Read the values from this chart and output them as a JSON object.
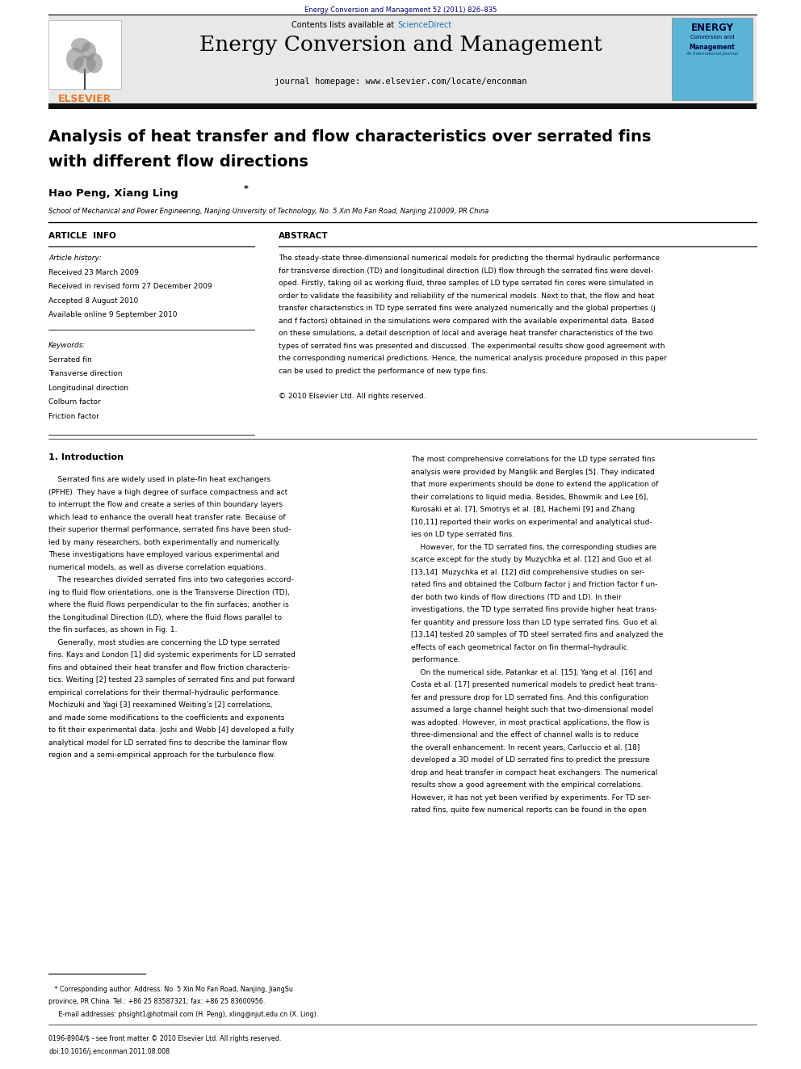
{
  "page_width": 9.92,
  "page_height": 13.23,
  "bg_color": "#ffffff",
  "top_citation": "Energy Conversion and Management 52 (2011) 826–835",
  "journal_name": "Energy Conversion and Management",
  "journal_url": "journal homepage: www.elsevier.com/locate/enconman",
  "paper_title_line1": "Analysis of heat transfer and flow characteristics over serrated fins",
  "paper_title_line2": "with different flow directions",
  "authors": "Hao Peng, Xiang Ling",
  "affiliation": "School of Mechanical and Power Engineering, Nanjing University of Technology, No. 5 Xin Mo Fan Road, Nanjing 210009, PR China",
  "article_info_label": "ARTICLE  INFO",
  "abstract_label": "ABSTRACT",
  "article_history_label": "Article history:",
  "received1": "Received 23 March 2009",
  "received2": "Received in revised form 27 December 2009",
  "accepted": "Accepted 8 August 2010",
  "available": "Available online 9 September 2010",
  "keywords_label": "Keywords:",
  "keywords": [
    "Serrated fin",
    "Transverse direction",
    "Longitudinal direction",
    "Colburn factor",
    "Friction factor"
  ],
  "abstract_lines": [
    "The steady-state three-dimensional numerical models for predicting the thermal hydraulic performance",
    "for transverse direction (TD) and longitudinal direction (LD) flow through the serrated fins were devel-",
    "oped. Firstly, taking oil as working fluid, three samples of LD type serrated fin cores were simulated in",
    "order to validate the feasibility and reliability of the numerical models. Next to that, the flow and heat",
    "transfer characteristics in TD type serrated fins were analyzed numerically and the global properties (j",
    "and f factors) obtained in the simulations were compared with the available experimental data. Based",
    "on these simulations, a detail description of local and average heat transfer characteristics of the two",
    "types of serrated fins was presented and discussed. The experimental results show good agreement with",
    "the corresponding numerical predictions. Hence, the numerical analysis procedure proposed in this paper",
    "can be used to predict the performance of new type fins.",
    "",
    "© 2010 Elsevier Ltd. All rights reserved."
  ],
  "section1_title": "1. Introduction",
  "left_col_lines": [
    "    Serrated fins are widely used in plate-fin heat exchangers",
    "(PFHE). They have a high degree of surface compactness and act",
    "to interrupt the flow and create a series of thin boundary layers",
    "which lead to enhance the overall heat transfer rate. Because of",
    "their superior thermal performance, serrated fins have been stud-",
    "ied by many researchers, both experimentally and numerically.",
    "These investigations have employed various experimental and",
    "numerical models, as well as diverse correlation equations.",
    "    The researches divided serrated fins into two categories accord-",
    "ing to fluid flow orientations, one is the Transverse Direction (TD),",
    "where the fluid flows perpendicular to the fin surfaces; another is",
    "the Longitudinal Direction (LD), where the fluid flows parallel to",
    "the fin surfaces, as shown in Fig. 1.",
    "    Generally, most studies are concerning the LD type serrated",
    "fins. Kays and London [1] did systemic experiments for LD serrated",
    "fins and obtained their heat transfer and flow friction characteris-",
    "tics. Weiting [2] tested 23 samples of serrated fins and put forward",
    "empirical correlations for their thermal–hydraulic performance.",
    "Mochizuki and Yagi [3] reexamined Weiting’s [2] correlations,",
    "and made some modifications to the coefficients and exponents",
    "to fit their experimental data. Joshi and Webb [4] developed a fully",
    "analytical model for LD serrated fins to describe the laminar flow",
    "region and a semi-empirical approach for the turbulence flow."
  ],
  "right_col_lines": [
    "The most comprehensive correlations for the LD type serrated fins",
    "analysis were provided by Manglik and Bergles [5]. They indicated",
    "that more experiments should be done to extend the application of",
    "their correlations to liquid media. Besides, Bhowmik and Lee [6],",
    "Kurosaki et al. [7], Smotrys et al. [8], Hachemi [9] and Zhang",
    "[10,11] reported their works on experimental and analytical stud-",
    "ies on LD type serrated fins.",
    "    However, for the TD serrated fins, the corresponding studies are",
    "scarce except for the study by Muzychka et al. [12] and Guo et al.",
    "[13,14]. Muzychka et al. [12] did comprehensive studies on ser-",
    "rated fins and obtained the Colburn factor j and friction factor f un-",
    "der both two kinds of flow directions (TD and LD). In their",
    "investigations, the TD type serrated fins provide higher heat trans-",
    "fer quantity and pressure loss than LD type serrated fins. Guo et al.",
    "[13,14] tested 20 samples of TD steel serrated fins and analyzed the",
    "effects of each geometrical factor on fin thermal–hydraulic",
    "performance.",
    "    On the numerical side, Patankar et al. [15], Yang et al. [16] and",
    "Costa et al. [17] presented numerical models to predict heat trans-",
    "fer and pressure drop for LD serrated fins. And this configuration",
    "assumed a large channel height such that two-dimensional model",
    "was adopted. However, in most practical applications, the flow is",
    "three-dimensional and the effect of channel walls is to reduce",
    "the overall enhancement. In recent years, Carluccio et al. [18]",
    "developed a 3D model of LD serrated fins to predict the pressure",
    "drop and heat transfer in compact heat exchangers. The numerical",
    "results show a good agreement with the empirical correlations.",
    "However, it has not yet been verified by experiments. For TD ser-",
    "rated fins, quite few numerical reports can be found in the open"
  ],
  "footnote1": "   * Corresponding author. Address: No. 5 Xin Mo Fan Road, Nanjing, JiangSu",
  "footnote2": "province, PR China. Tel.: +86 25 83587321; fax: +86 25 83600956.",
  "footnote3": "     E-mail addresses: phsight1@hotmail.com (H. Peng), xling@njut.edu.cn (X. Ling).",
  "footer1": "0196-8904/$ - see front matter © 2010 Elsevier Ltd. All rights reserved.",
  "footer2": "doi:10.1016/j.enconman.2011.08.008",
  "header_bg": "#e8e8e8",
  "elsevier_orange": "#e87722",
  "sciencedirect_blue": "#1a6eb5",
  "citation_blue": "#000080",
  "cover_bg": "#5ab4d6"
}
